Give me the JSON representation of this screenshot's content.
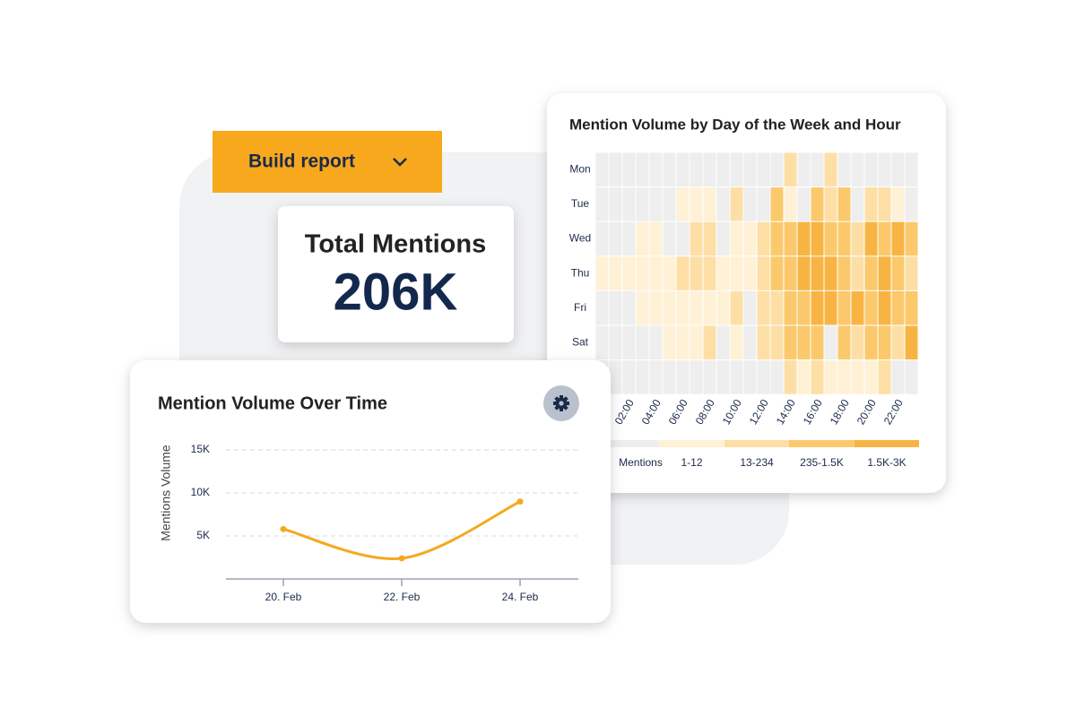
{
  "build_report": {
    "label": "Build report"
  },
  "kpi": {
    "title": "Total Mentions",
    "value": "206K"
  },
  "chart_data": [
    {
      "type": "line",
      "title": "Mention Volume Over Time",
      "y_label": "Mentions Volume",
      "categories": [
        "20. Feb",
        "22. Feb",
        "24. Feb"
      ],
      "values": [
        5800,
        2400,
        9000
      ],
      "color": "#f5a91f",
      "ylim": [
        0,
        15000
      ],
      "yticks": [
        {
          "value": 5000,
          "label": "5K"
        },
        {
          "value": 10000,
          "label": "10K"
        },
        {
          "value": 15000,
          "label": "15K"
        }
      ],
      "grid": true
    },
    {
      "type": "heatmap",
      "title": "Mention Volume by Day of the Week and Hour",
      "x": [
        null,
        null,
        "02:00",
        null,
        "04:00",
        null,
        "06:00",
        null,
        "08:00",
        null,
        "10:00",
        null,
        "12:00",
        null,
        "14:00",
        null,
        "16:00",
        null,
        "18:00",
        null,
        "20:00",
        null,
        "22:00",
        null
      ],
      "y": [
        "Mon",
        "Tue",
        "Wed",
        "Thu",
        "Fri",
        "Sat",
        null
      ],
      "values": [
        [
          0,
          0,
          0,
          0,
          0,
          0,
          0,
          0,
          0,
          0,
          0,
          0,
          0,
          0,
          2,
          0,
          0,
          2,
          0,
          0,
          0,
          0,
          0,
          0
        ],
        [
          0,
          0,
          0,
          0,
          0,
          0,
          1,
          1,
          1,
          0,
          2,
          0,
          0,
          3,
          1,
          0,
          3,
          2,
          3,
          0,
          2,
          2,
          1,
          0
        ],
        [
          0,
          0,
          0,
          1,
          1,
          0,
          0,
          2,
          2,
          0,
          1,
          1,
          2,
          3,
          3,
          4,
          4,
          3,
          3,
          2,
          4,
          3,
          4,
          3
        ],
        [
          1,
          1,
          1,
          1,
          1,
          1,
          2,
          2,
          2,
          1,
          1,
          1,
          2,
          3,
          3,
          4,
          4,
          4,
          3,
          2,
          3,
          4,
          3,
          2
        ],
        [
          0,
          0,
          0,
          1,
          1,
          1,
          1,
          1,
          1,
          1,
          2,
          0,
          2,
          2,
          3,
          3,
          4,
          4,
          3,
          4,
          3,
          4,
          3,
          3
        ],
        [
          0,
          0,
          0,
          0,
          0,
          1,
          1,
          1,
          2,
          0,
          1,
          0,
          2,
          2,
          3,
          3,
          3,
          0,
          3,
          2,
          3,
          3,
          2,
          4
        ],
        [
          0,
          0,
          0,
          0,
          0,
          0,
          0,
          0,
          0,
          0,
          0,
          0,
          0,
          0,
          2,
          1,
          2,
          1,
          1,
          1,
          1,
          2,
          0,
          0
        ]
      ],
      "color_scale": [
        {
          "label": "Mentions",
          "color": "#eeeeee"
        },
        {
          "label": "1-12",
          "color": "#fff1d6"
        },
        {
          "label": "13-234",
          "color": "#fddfa6"
        },
        {
          "label": "235-1.5K",
          "color": "#fbc96c"
        },
        {
          "label": "1.5K-3K",
          "color": "#f8b443"
        }
      ]
    }
  ]
}
